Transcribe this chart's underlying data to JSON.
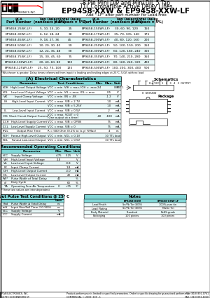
{
  "title_line1": "8 Pin Mini DIP and Mini DIL 5 Tap",
  "title_line2": "TTL Compatible Active Delay Lines",
  "title_line3": "EP9458-XXW & EP9458-XXW-LF",
  "title_line4": "Add \"-LF\" after part number for Lead-Free",
  "part_table_headers": [
    "PCA\nPart Number",
    "Tap Delays\n(nanosecs ± 5%)",
    "Total Delay\n(nanosecs ± 5%)",
    "PCA\nPart Number",
    "Tap Delays\n(nanosecs ± 5%)",
    "Total Delay\n(nanosecs ± 5%)"
  ],
  "part_table_rows": [
    [
      "EP9458-25W(-LF)",
      "5, 10, 15, 20",
      "25",
      "EP9458-150W(-LF)",
      "30, 60, 90, 120",
      "150"
    ],
    [
      "EP9458-30W(-LF)",
      "6, 12, 18, 24",
      "30",
      "EP9458-175W(-LF)",
      "35, 70, 105, 140",
      "175"
    ],
    [
      "EP9458-45W(-LF)",
      "9, 18, 27, 36",
      "45",
      "EP9458-200W(-LF)",
      "40, 80, 120, 160",
      "200"
    ],
    [
      "EP9458-50W(-LF)",
      "10, 20, 30, 40",
      "50",
      "EP9458-250W(-LF)",
      "50, 100, 150, 200",
      "250"
    ],
    [
      "EP9458-60W(-LF)",
      "12, 24, 36, 48",
      "60",
      "EP9458-300W(-LF)",
      "60, 120, 180, 240",
      "300"
    ],
    [
      "EP9458-75W(-LF)",
      "15, 30, 45, 60",
      "75",
      "EP9458-350W(-LF)",
      "70, 140, 210, 280",
      "350"
    ],
    [
      "EP9458-100W(-LF)",
      "20, 40, 60, 80",
      "100",
      "EP9458-400W(-LF)",
      "80, 160, 240, 320",
      "400"
    ],
    [
      "EP9458-125W(-LF)",
      "25, 50, 75, 100",
      "125",
      "EP9458-500W(-LF)",
      "100, 200, 300, 400",
      "500"
    ]
  ],
  "footnote": "*Whichever is greater. Delay times referenced from input to leading and trailing edges at 25°C, 5.0V, with no load",
  "elec_header": "(A) Electrical Characteristics",
  "elec_subheaders": [
    "Parameter",
    "Parameter",
    "Test Conditions",
    "Min.",
    "Max.",
    "Unit"
  ],
  "elec_rows": [
    [
      "VOH",
      "High-Level Output Voltage",
      "VCC = min. VIH = max, IOH = -max",
      "2.4",
      "",
      "V"
    ],
    [
      "VOL",
      "Low-Level Output Voltage",
      "VCC = min. VIL = max, IOL = max",
      "",
      "0.5",
      "V"
    ],
    [
      "VIK",
      "Input Clamp Voltage",
      "VCC = min. IIN = -IIK",
      "",
      "-1.2",
      "V"
    ],
    [
      "IIH",
      "High-Level Input Current",
      "VCC = max. VIN = 2.7V",
      "",
      "1.0",
      "mA"
    ],
    [
      "",
      "",
      "VCC = max. VIN = 5.25V",
      "",
      "1.0",
      "mA"
    ],
    [
      "IIL",
      "Low-Level Input Current",
      "VCC = max. VIN = 0.5V",
      "",
      "-2",
      "mA"
    ],
    [
      "IOS",
      "Short Circuit Output Current",
      "VCC = max. VOUT = 0\n(One output at a time)",
      "-40",
      "-100",
      "mA"
    ],
    [
      "ICCH",
      "High-Level Supply Current",
      "VCC = max. VIN = OPEN",
      "",
      "75",
      "mA"
    ],
    [
      "ICCL",
      "Low-Level Supply Current",
      "VCC = max. VIN = 0",
      "",
      "75",
      "mA"
    ],
    [
      "tPZL",
      "Output Rise Time",
      "R = 500 Ohm (0.1% to (x-y) %Max)",
      "",
      "4",
      "ns"
    ],
    [
      "NOH",
      "Fanout High-Level Output",
      "VCC = min. VOL = 0.1V",
      "",
      "10 TTL",
      "Load"
    ],
    [
      "NOL",
      "Fanout Low-Level Output",
      "VCC = min. VOL = 0.5V",
      "",
      "10 TTL",
      "Load"
    ]
  ],
  "rec_header": "Recommended Operating Conditions",
  "rec_subheaders": [
    "",
    "",
    "Min.",
    "Max.",
    "Unit"
  ],
  "rec_rows": [
    [
      "VCC",
      "Supply Voltage",
      "4.75",
      "5.25",
      "V"
    ],
    [
      "VIH",
      "High-Level Input Voltage",
      "2.0",
      "",
      "V"
    ],
    [
      "VIL",
      "Low-Level Input Voltage",
      "",
      "-0.8",
      "V"
    ],
    [
      "IIK",
      "Input Clamp Current",
      "",
      "1.8",
      "mA"
    ],
    [
      "IOH",
      "High-Level Output Current",
      "",
      "-3.0",
      "mA"
    ],
    [
      "IOL",
      "Low-Level Output Current",
      "",
      "20",
      "mA"
    ],
    [
      "PW*",
      "Pulse Width of Total Delay",
      "40",
      "",
      "%"
    ],
    [
      "d*",
      "Duty Cycle",
      "",
      "60",
      "%"
    ],
    [
      "TA",
      "Operating Free Air Temperature",
      "0",
      "+75",
      "°C"
    ]
  ],
  "pulse_header": "Input Pulse Test Conditions @ 25° C",
  "pulse_rows": [
    [
      "Pad",
      "Pulse Width ≥ Total Delay",
      "ns"
    ],
    [
      "tr/tf",
      "Input Rise/Fall Time (10-90%)",
      "ns"
    ],
    [
      "VCC",
      "Supply Voltage",
      "V"
    ],
    [
      "ICC",
      "Supply Current",
      "mA"
    ]
  ],
  "notes_rows": [
    [
      "",
      "EP9458-XXW",
      "EP9458-XXW-LF"
    ],
    [
      "Lead Finish",
      "Sn/Pb Tin (60%)",
      "100% pure tin"
    ],
    [
      "Lead Plating",
      "Sn/Pb Tin (60%)",
      "Matte Tin"
    ],
    [
      "Body Material",
      "Standard",
      "RoHS-grade"
    ],
    [
      "Packaging",
      "100 pieces",
      "100 pieces"
    ]
  ],
  "footer_left": "PCA ELECTRONICS, INC.\n16799 SCHOENBORN ST.\nNORTH HILLS, CA 91343",
  "footer_mid": "Product performance is limited to specified parameters. Order to specific drawing for guaranteed performance.\nCOMMERCIAL © 2009  E09 - 1",
  "footer_right": "Tel: (818) 892-0761\nFAX: (818) 893-4060\nwww.pcaelectronics.com",
  "header_bg": "#7fd6d6",
  "bg_color": "#ffffff"
}
